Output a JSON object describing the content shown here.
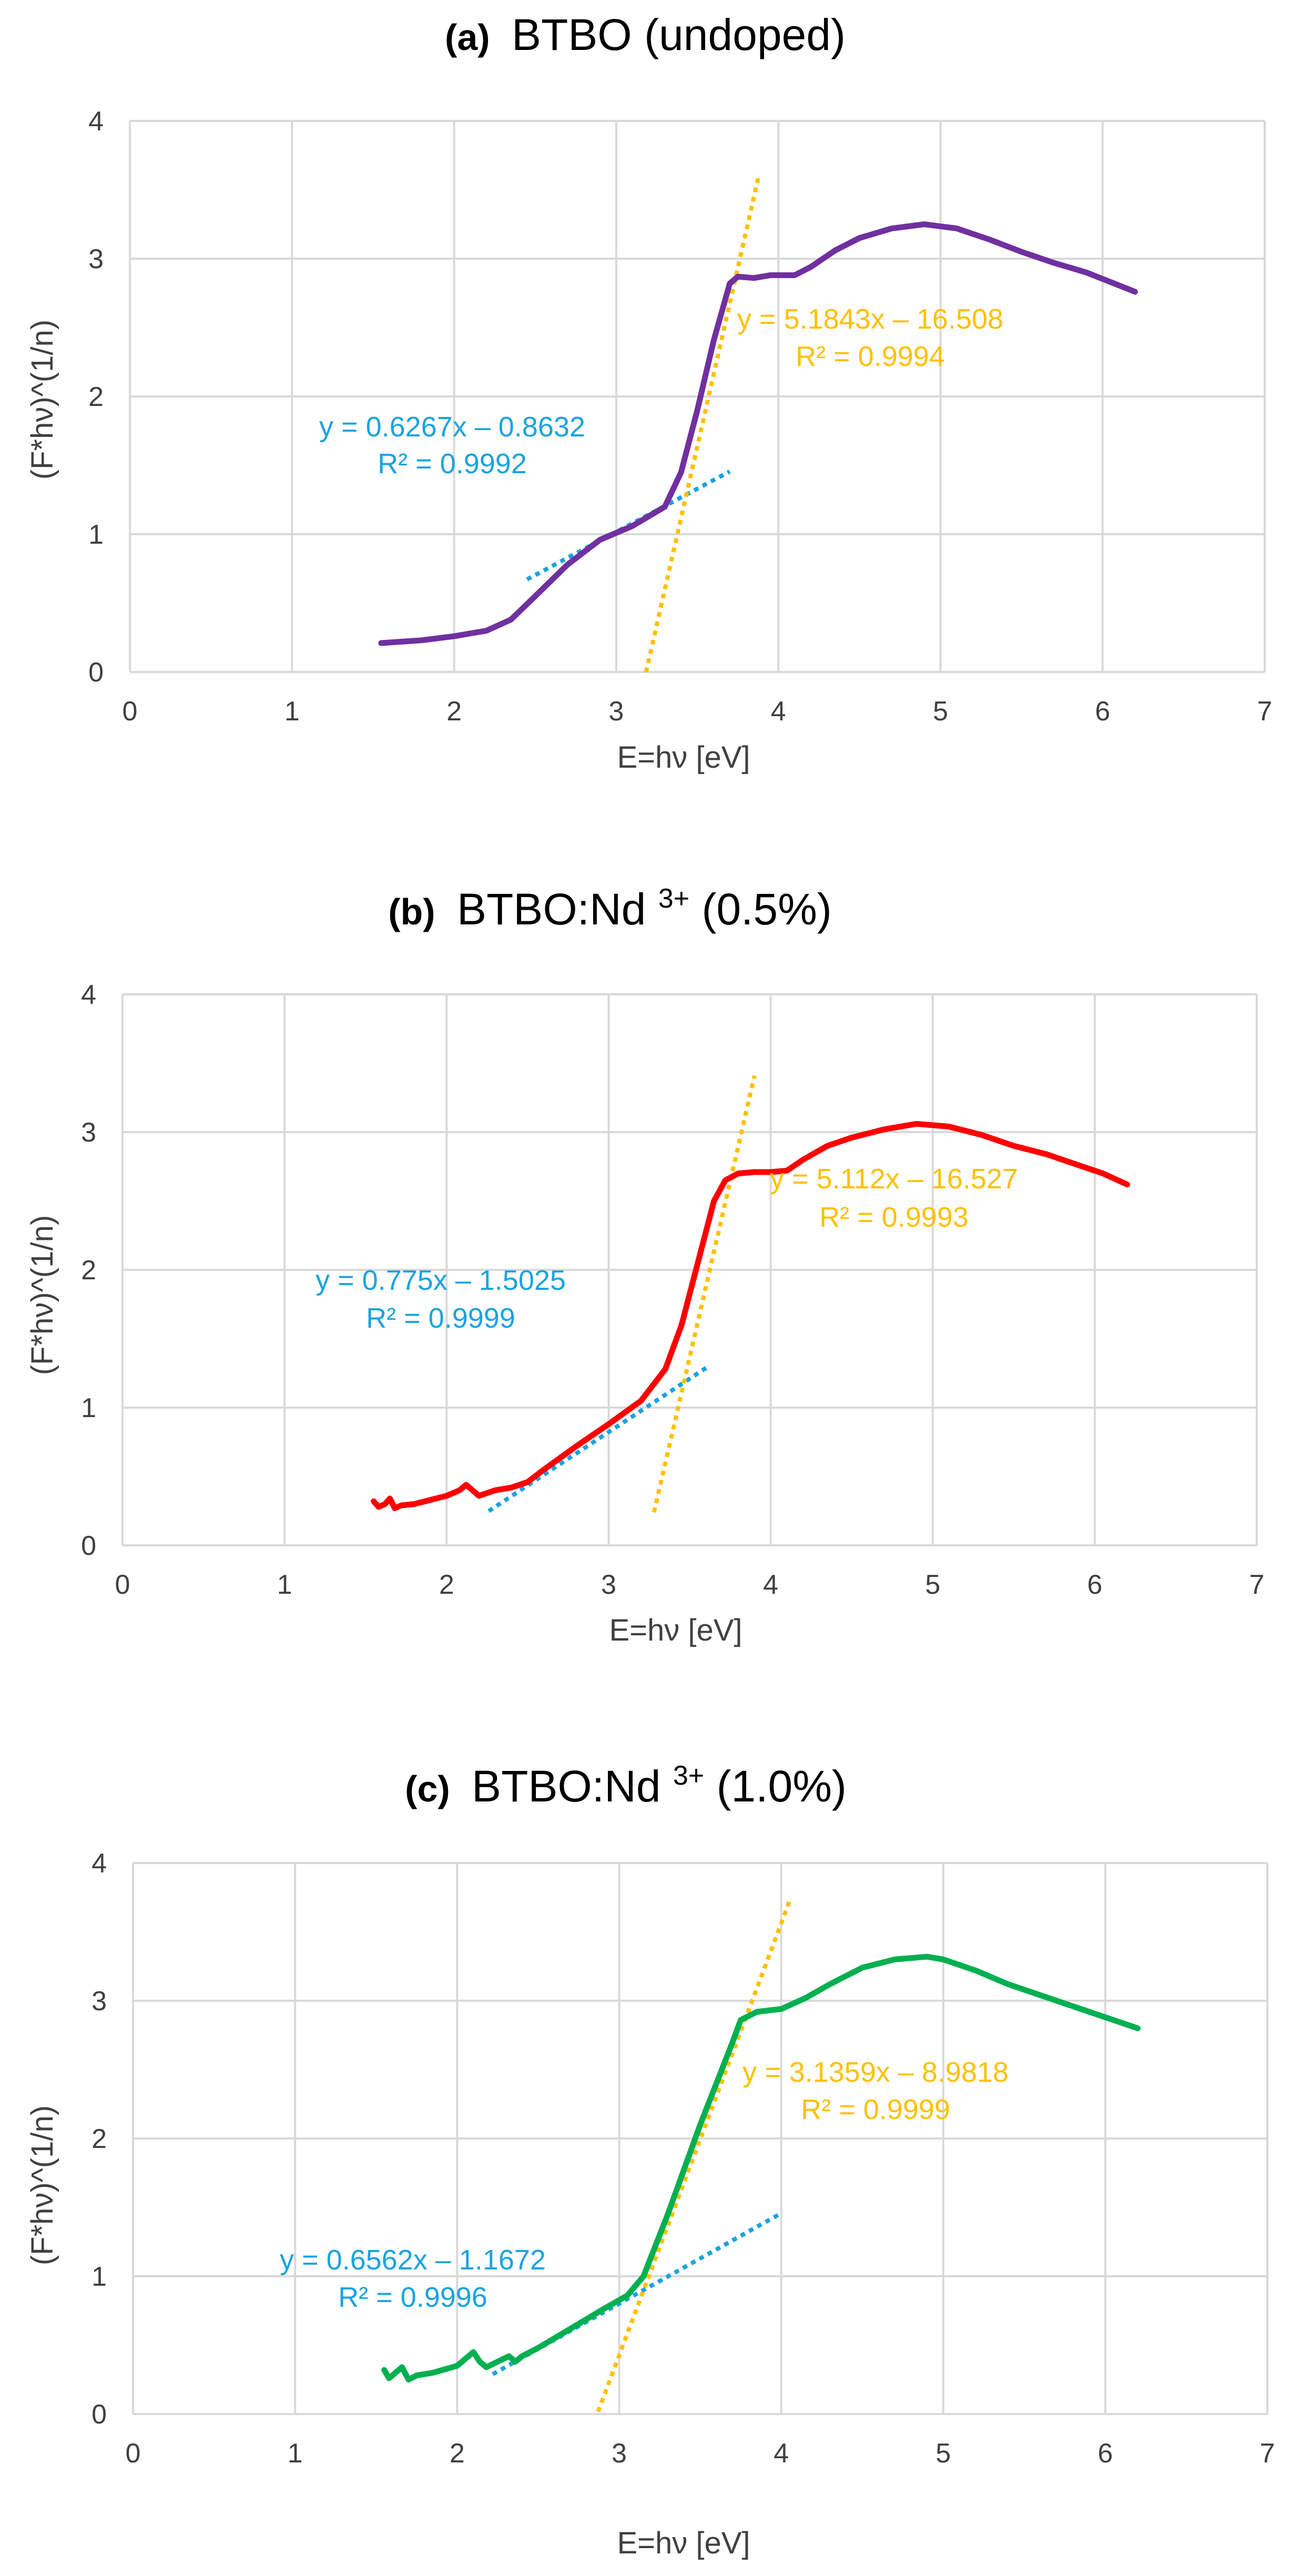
{
  "chart_data": [
    {
      "type": "line",
      "title_prefix": "(a)",
      "title": "BTBO (undoped)",
      "title_sup": "",
      "title_suffix": "",
      "xlabel": "E=hν [eV]",
      "ylabel": "(F*hν)^(1/n)",
      "xlim": [
        0,
        7
      ],
      "ylim": [
        0,
        4
      ],
      "xticks": [
        "0",
        "1",
        "2",
        "3",
        "4",
        "5",
        "6",
        "7"
      ],
      "yticks": [
        "0",
        "1",
        "2",
        "3",
        "4"
      ],
      "gridlines": true,
      "series": [
        {
          "name": "BTBO (undoped)",
          "color": "#7030A0",
          "x": [
            1.55,
            1.8,
            2.0,
            2.2,
            2.35,
            2.5,
            2.7,
            2.9,
            3.1,
            3.3,
            3.4,
            3.5,
            3.6,
            3.7,
            3.75,
            3.85,
            3.95,
            4.1,
            4.2,
            4.35,
            4.5,
            4.7,
            4.9,
            5.1,
            5.3,
            5.5,
            5.7,
            5.9,
            6.05,
            6.2
          ],
          "y": [
            0.21,
            0.23,
            0.26,
            0.3,
            0.38,
            0.55,
            0.78,
            0.96,
            1.06,
            1.2,
            1.45,
            1.9,
            2.4,
            2.82,
            2.87,
            2.86,
            2.88,
            2.88,
            2.94,
            3.06,
            3.15,
            3.22,
            3.25,
            3.22,
            3.14,
            3.05,
            2.97,
            2.9,
            2.83,
            2.76
          ]
        }
      ],
      "fits": [
        {
          "equation": "y = 0.6267x – 0.8632",
          "r2": "R² = 0.9992",
          "slope": 0.6267,
          "intercept": -0.8632,
          "x_range": [
            2.45,
            3.7
          ],
          "color": "#1AA3E0"
        },
        {
          "equation": "y = 5.1843x – 16.508",
          "r2": "R² = 0.9994",
          "slope": 5.1843,
          "intercept": -16.508,
          "x_range": [
            3.184,
            3.88
          ],
          "color": "#FFC000"
        }
      ]
    },
    {
      "type": "line",
      "title_prefix": "(b)",
      "title": "BTBO:Nd",
      "title_sup": "3+",
      "title_suffix": "(0.5%)",
      "xlabel": "E=hν [eV]",
      "ylabel": "(F*hν)^(1/n)",
      "xlim": [
        0,
        7
      ],
      "ylim": [
        0,
        4
      ],
      "xticks": [
        "0",
        "1",
        "2",
        "3",
        "4",
        "5",
        "6",
        "7"
      ],
      "yticks": [
        "0",
        "1",
        "2",
        "3",
        "4"
      ],
      "gridlines": true,
      "series": [
        {
          "name": "BTBO:Nd3+(0.5%)",
          "color": "#FF0000",
          "x": [
            1.55,
            1.58,
            1.62,
            1.65,
            1.68,
            1.72,
            1.8,
            1.9,
            2.0,
            2.08,
            2.12,
            2.16,
            2.2,
            2.3,
            2.4,
            2.5,
            2.6,
            2.8,
            3.0,
            3.2,
            3.35,
            3.45,
            3.55,
            3.65,
            3.72,
            3.8,
            3.9,
            4.0,
            4.1,
            4.2,
            4.35,
            4.5,
            4.7,
            4.9,
            5.1,
            5.3,
            5.5,
            5.7,
            5.9,
            6.05,
            6.2
          ],
          "y": [
            0.32,
            0.28,
            0.3,
            0.34,
            0.27,
            0.29,
            0.3,
            0.33,
            0.36,
            0.4,
            0.44,
            0.4,
            0.36,
            0.4,
            0.42,
            0.46,
            0.55,
            0.72,
            0.88,
            1.05,
            1.28,
            1.6,
            2.05,
            2.5,
            2.65,
            2.7,
            2.71,
            2.71,
            2.72,
            2.8,
            2.9,
            2.96,
            3.02,
            3.06,
            3.04,
            2.98,
            2.9,
            2.84,
            2.76,
            2.7,
            2.62
          ]
        }
      ],
      "fits": [
        {
          "equation": "y = 0.775x – 1.5025",
          "r2": "R² = 0.9999",
          "slope": 0.775,
          "intercept": -1.5025,
          "x_range": [
            2.26,
            3.62
          ],
          "color": "#1AA3E0"
        },
        {
          "equation": "y = 5.112x – 16.527",
          "r2": "R² = 0.9993",
          "slope": 5.112,
          "intercept": -16.527,
          "x_range": [
            3.28,
            3.9
          ],
          "color": "#FFC000"
        }
      ]
    },
    {
      "type": "line",
      "title_prefix": "(c)",
      "title": "BTBO:Nd",
      "title_sup": "3+",
      "title_suffix": "(1.0%)",
      "xlabel": "E=hν [eV]",
      "ylabel": "(F*hν)^(1/n)",
      "xlim": [
        0,
        7
      ],
      "ylim": [
        0,
        4
      ],
      "xticks": [
        "0",
        "1",
        "2",
        "3",
        "4",
        "5",
        "6",
        "7"
      ],
      "yticks": [
        "0",
        "1",
        "2",
        "3",
        "4"
      ],
      "gridlines": true,
      "series": [
        {
          "name": "BTBO:Nd3+(1.0%)",
          "color": "#00B050",
          "x": [
            1.55,
            1.58,
            1.62,
            1.66,
            1.7,
            1.75,
            1.85,
            2.0,
            2.05,
            2.1,
            2.14,
            2.18,
            2.25,
            2.32,
            2.36,
            2.4,
            2.5,
            2.7,
            2.9,
            3.05,
            3.15,
            3.3,
            3.5,
            3.7,
            3.75,
            3.85,
            4.0,
            4.15,
            4.3,
            4.5,
            4.7,
            4.9,
            5.0,
            5.2,
            5.4,
            5.6,
            5.8,
            6.0,
            6.2
          ],
          "y": [
            0.32,
            0.26,
            0.3,
            0.34,
            0.25,
            0.28,
            0.3,
            0.35,
            0.4,
            0.45,
            0.38,
            0.34,
            0.38,
            0.42,
            0.38,
            0.42,
            0.48,
            0.62,
            0.76,
            0.86,
            1.0,
            1.45,
            2.1,
            2.7,
            2.86,
            2.92,
            2.94,
            3.02,
            3.12,
            3.24,
            3.3,
            3.32,
            3.3,
            3.22,
            3.12,
            3.04,
            2.96,
            2.88,
            2.8
          ]
        }
      ],
      "fits": [
        {
          "equation": "y = 0.6562x – 1.1672",
          "r2": "R² = 0.9996",
          "slope": 0.6562,
          "intercept": -1.1672,
          "x_range": [
            2.22,
            3.98
          ],
          "color": "#1AA3E0"
        },
        {
          "equation": "y = 3.1359x – 8.9818",
          "r2": "R² = 0.9999",
          "slope": 3.1359,
          "intercept": -8.9818,
          "x_range": [
            2.87,
            4.06
          ],
          "color": "#FFC000"
        }
      ]
    }
  ]
}
